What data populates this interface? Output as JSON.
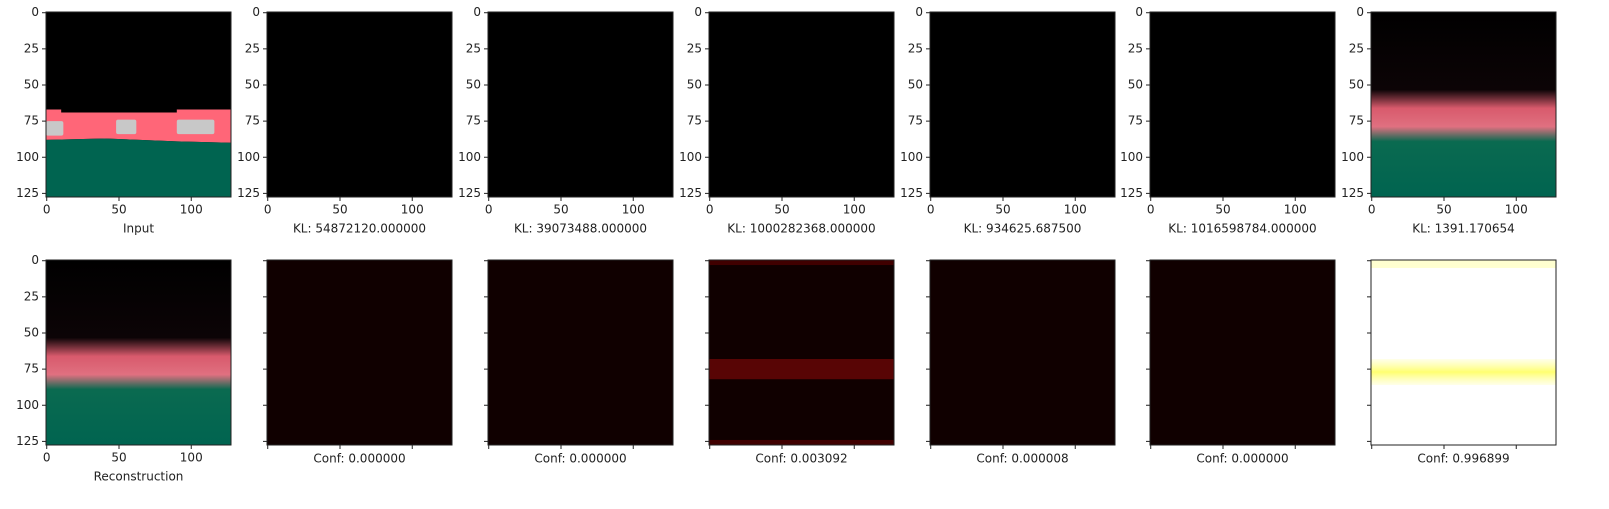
{
  "axis": {
    "xlim": [
      -0.5,
      127.5
    ],
    "ylim": [
      127.5,
      -0.5
    ],
    "xticks": [
      0,
      50,
      100
    ],
    "yticks": [
      0,
      25,
      50,
      75,
      100,
      125
    ]
  },
  "top_row": [
    {
      "label": "Input"
    },
    {
      "label": "KL: 54872120.000000"
    },
    {
      "label": "KL: 39073488.000000"
    },
    {
      "label": "KL: 1000282368.000000"
    },
    {
      "label": "KL: 934625.687500"
    },
    {
      "label": "KL: 1016598784.000000"
    },
    {
      "label": "KL: 1391.170654"
    }
  ],
  "bottom_row": [
    {
      "label": "Reconstruction"
    },
    {
      "label": "Conf: 0.000000"
    },
    {
      "label": "Conf: 0.000000"
    },
    {
      "label": "Conf: 0.003092"
    },
    {
      "label": "Conf: 0.000008"
    },
    {
      "label": "Conf: 0.000000"
    },
    {
      "label": "Conf: 0.996899"
    }
  ]
}
